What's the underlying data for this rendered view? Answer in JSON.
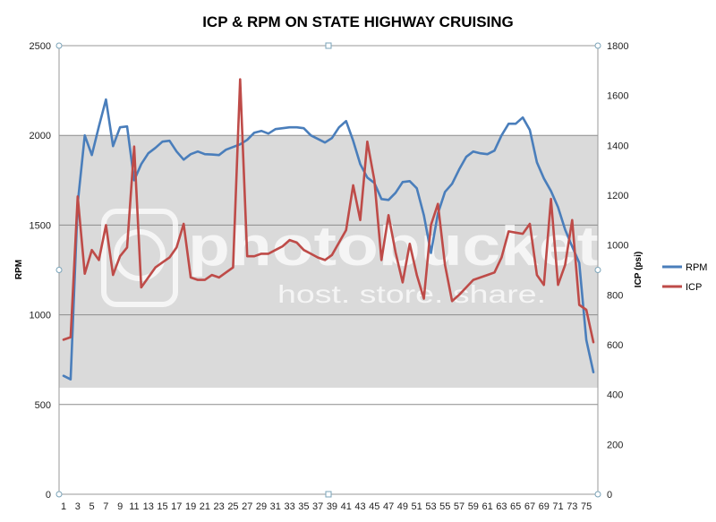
{
  "chart_data": {
    "type": "line",
    "title": "ICP & RPM ON STATE HIGHWAY CRUISING",
    "ylabel_left": "RPM",
    "ylabel_right": "ICP (psi)",
    "y_left_lim": [
      0,
      2500
    ],
    "y_right_lim": [
      0,
      1800
    ],
    "y_left_ticks": [
      "0",
      "500",
      "1000",
      "1500",
      "2000",
      "2500"
    ],
    "y_right_ticks": [
      "0",
      "200",
      "400",
      "600",
      "800",
      "1000",
      "1200",
      "1400",
      "1600",
      "1800"
    ],
    "x": [
      1,
      2,
      3,
      4,
      5,
      6,
      7,
      8,
      9,
      10,
      11,
      12,
      13,
      14,
      15,
      16,
      17,
      18,
      19,
      20,
      21,
      22,
      23,
      24,
      25,
      26,
      27,
      28,
      29,
      30,
      31,
      32,
      33,
      34,
      35,
      36,
      37,
      38,
      39,
      40,
      41,
      42,
      43,
      44,
      45,
      46,
      47,
      48,
      49,
      50,
      51,
      52,
      53,
      54,
      55,
      56,
      57,
      58,
      59,
      60,
      61,
      62,
      63,
      64,
      65,
      66,
      67,
      68,
      69,
      70,
      71,
      72,
      73,
      74,
      75,
      76
    ],
    "x_tick_labels": [
      "1",
      "3",
      "5",
      "7",
      "9",
      "11",
      "13",
      "15",
      "17",
      "19",
      "21",
      "23",
      "25",
      "27",
      "29",
      "31",
      "33",
      "35",
      "37",
      "39",
      "41",
      "43",
      "45",
      "47",
      "49",
      "51",
      "53",
      "55",
      "57",
      "59",
      "61",
      "63",
      "65",
      "67",
      "69",
      "71",
      "73",
      "75"
    ],
    "grid": true,
    "legend_position": "right",
    "series": [
      {
        "name": "RPM",
        "axis": "left",
        "color": "#4a7ebb",
        "values": [
          660,
          640,
          1620,
          2000,
          1890,
          2050,
          2200,
          1940,
          2045,
          2050,
          1750,
          1840,
          1900,
          1930,
          1965,
          1970,
          1910,
          1865,
          1895,
          1910,
          1895,
          1893,
          1890,
          1920,
          1935,
          1950,
          1975,
          2015,
          2025,
          2010,
          2035,
          2040,
          2045,
          2045,
          2040,
          2000,
          1980,
          1960,
          1985,
          2045,
          2080,
          1970,
          1840,
          1765,
          1735,
          1645,
          1640,
          1680,
          1740,
          1745,
          1705,
          1555,
          1345,
          1565,
          1685,
          1730,
          1810,
          1880,
          1910,
          1900,
          1895,
          1915,
          2000,
          2065,
          2065,
          2100,
          2030,
          1850,
          1760,
          1690,
          1600,
          1475,
          1380,
          1290,
          860,
          680
        ]
      },
      {
        "name": "ICP",
        "axis": "right",
        "color": "#be4b48",
        "values": [
          620,
          630,
          1195,
          885,
          980,
          940,
          1080,
          880,
          955,
          990,
          1395,
          830,
          870,
          910,
          930,
          950,
          990,
          1085,
          870,
          860,
          860,
          880,
          870,
          890,
          910,
          1665,
          955,
          955,
          965,
          965,
          980,
          995,
          1020,
          1010,
          980,
          965,
          950,
          940,
          960,
          1010,
          1060,
          1240,
          1100,
          1415,
          1260,
          940,
          1120,
          970,
          850,
          1005,
          880,
          785,
          1080,
          1165,
          920,
          775,
          800,
          830,
          860,
          870,
          880,
          890,
          950,
          1055,
          1050,
          1045,
          1085,
          880,
          840,
          1185,
          840,
          920,
          1100,
          760,
          740,
          610
        ]
      }
    ]
  },
  "watermark": {
    "brand": "photobucket",
    "tagline": "host. store. share."
  }
}
